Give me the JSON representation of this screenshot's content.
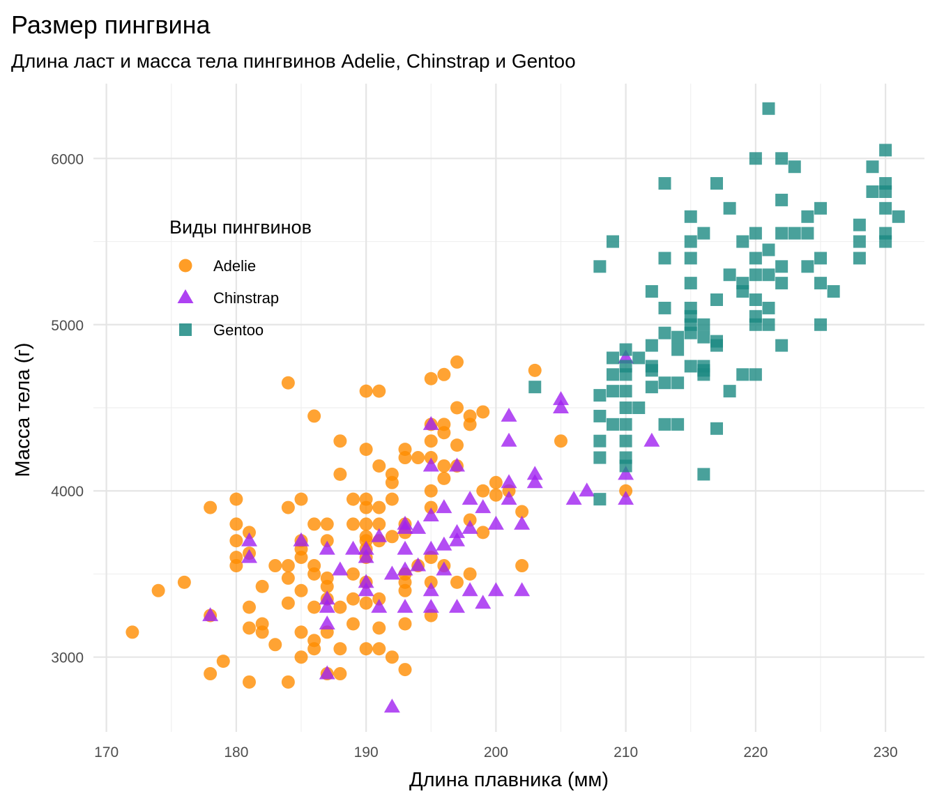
{
  "chart_data": {
    "type": "scatter",
    "title": "Размер пингвина",
    "subtitle": "Длина ласт и масса тела пингвинов Adelie, Chinstrap и Gentoo",
    "xlabel": "Длина плавника (мм)",
    "ylabel": "Масса тела (г)",
    "xlim": [
      169,
      233
    ],
    "ylim": [
      2550,
      6450
    ],
    "xticks": [
      170,
      180,
      190,
      200,
      210,
      220,
      230
    ],
    "yticks": [
      3000,
      4000,
      5000,
      6000
    ],
    "grid": true,
    "legend": {
      "title": "Виды пингвинов",
      "placement": "inside-top-left"
    },
    "series": [
      {
        "name": "Adelie",
        "color": "#FF8C00",
        "shape": "circle",
        "points": [
          [
            172,
            3150
          ],
          [
            174,
            3400
          ],
          [
            176,
            3450
          ],
          [
            178,
            3900
          ],
          [
            178,
            2900
          ],
          [
            178,
            3250
          ],
          [
            179,
            2975
          ],
          [
            180,
            3950
          ],
          [
            180,
            3800
          ],
          [
            180,
            3700
          ],
          [
            180,
            3600
          ],
          [
            180,
            3550
          ],
          [
            181,
            3750
          ],
          [
            181,
            3625
          ],
          [
            181,
            3300
          ],
          [
            181,
            3175
          ],
          [
            181,
            2850
          ],
          [
            182,
            3425
          ],
          [
            182,
            3200
          ],
          [
            182,
            3150
          ],
          [
            183,
            3550
          ],
          [
            183,
            3075
          ],
          [
            184,
            4650
          ],
          [
            184,
            3900
          ],
          [
            184,
            3550
          ],
          [
            184,
            3475
          ],
          [
            184,
            3325
          ],
          [
            184,
            2850
          ],
          [
            185,
            3950
          ],
          [
            185,
            3700
          ],
          [
            185,
            3650
          ],
          [
            185,
            3600
          ],
          [
            185,
            3400
          ],
          [
            185,
            3150
          ],
          [
            185,
            3000
          ],
          [
            186,
            4450
          ],
          [
            186,
            3800
          ],
          [
            186,
            3550
          ],
          [
            186,
            3500
          ],
          [
            186,
            3300
          ],
          [
            186,
            3100
          ],
          [
            186,
            3050
          ],
          [
            187,
            3800
          ],
          [
            187,
            3700
          ],
          [
            187,
            3475
          ],
          [
            187,
            3425
          ],
          [
            187,
            3350
          ],
          [
            187,
            3150
          ],
          [
            187,
            2900
          ],
          [
            188,
            4300
          ],
          [
            188,
            4100
          ],
          [
            188,
            3300
          ],
          [
            188,
            3050
          ],
          [
            188,
            2900
          ],
          [
            189,
            3950
          ],
          [
            189,
            3800
          ],
          [
            189,
            3500
          ],
          [
            189,
            3350
          ],
          [
            189,
            3200
          ],
          [
            190,
            4600
          ],
          [
            190,
            4250
          ],
          [
            190,
            3950
          ],
          [
            190,
            3900
          ],
          [
            190,
            3800
          ],
          [
            190,
            3725
          ],
          [
            190,
            3700
          ],
          [
            190,
            3650
          ],
          [
            190,
            3600
          ],
          [
            190,
            3450
          ],
          [
            190,
            3325
          ],
          [
            190,
            3050
          ],
          [
            191,
            4600
          ],
          [
            191,
            4150
          ],
          [
            191,
            3900
          ],
          [
            191,
            3800
          ],
          [
            191,
            3700
          ],
          [
            191,
            3350
          ],
          [
            191,
            3175
          ],
          [
            191,
            3050
          ],
          [
            192,
            4100
          ],
          [
            192,
            4050
          ],
          [
            192,
            3950
          ],
          [
            192,
            3725
          ],
          [
            192,
            3000
          ],
          [
            193,
            4250
          ],
          [
            193,
            4200
          ],
          [
            193,
            3800
          ],
          [
            193,
            3750
          ],
          [
            193,
            3500
          ],
          [
            193,
            3450
          ],
          [
            193,
            3400
          ],
          [
            193,
            3200
          ],
          [
            193,
            2925
          ],
          [
            194,
            4200
          ],
          [
            194,
            3550
          ],
          [
            195,
            4675
          ],
          [
            195,
            4400
          ],
          [
            195,
            4300
          ],
          [
            195,
            4200
          ],
          [
            195,
            4000
          ],
          [
            195,
            3900
          ],
          [
            195,
            3600
          ],
          [
            195,
            3450
          ],
          [
            195,
            3250
          ],
          [
            196,
            4700
          ],
          [
            196,
            4400
          ],
          [
            196,
            4350
          ],
          [
            196,
            4150
          ],
          [
            196,
            4075
          ],
          [
            196,
            3550
          ],
          [
            197,
            4775
          ],
          [
            197,
            4500
          ],
          [
            197,
            4275
          ],
          [
            197,
            4150
          ],
          [
            197,
            3450
          ],
          [
            198,
            4450
          ],
          [
            198,
            4400
          ],
          [
            198,
            3825
          ],
          [
            198,
            3500
          ],
          [
            199,
            4475
          ],
          [
            199,
            4000
          ],
          [
            199,
            3750
          ],
          [
            200,
            4050
          ],
          [
            200,
            3975
          ],
          [
            201,
            4000
          ],
          [
            202,
            3875
          ],
          [
            202,
            3550
          ],
          [
            203,
            4725
          ],
          [
            205,
            4300
          ],
          [
            210,
            4000
          ]
        ]
      },
      {
        "name": "Chinstrap",
        "color": "#A020F0",
        "shape": "triangle",
        "points": [
          [
            178,
            3250
          ],
          [
            181,
            3700
          ],
          [
            181,
            3600
          ],
          [
            185,
            3700
          ],
          [
            187,
            3650
          ],
          [
            187,
            3350
          ],
          [
            187,
            3300
          ],
          [
            187,
            3200
          ],
          [
            187,
            2900
          ],
          [
            188,
            3525
          ],
          [
            189,
            3650
          ],
          [
            190,
            3650
          ],
          [
            190,
            3600
          ],
          [
            190,
            3450
          ],
          [
            190,
            3400
          ],
          [
            191,
            3725
          ],
          [
            191,
            3300
          ],
          [
            192,
            3500
          ],
          [
            192,
            2700
          ],
          [
            193,
            3800
          ],
          [
            193,
            3775
          ],
          [
            193,
            3650
          ],
          [
            193,
            3525
          ],
          [
            193,
            3300
          ],
          [
            194,
            3775
          ],
          [
            194,
            3550
          ],
          [
            195,
            4400
          ],
          [
            195,
            4150
          ],
          [
            195,
            3850
          ],
          [
            195,
            3650
          ],
          [
            195,
            3400
          ],
          [
            195,
            3300
          ],
          [
            196,
            3900
          ],
          [
            196,
            3675
          ],
          [
            196,
            3525
          ],
          [
            197,
            4150
          ],
          [
            197,
            3750
          ],
          [
            197,
            3700
          ],
          [
            197,
            3300
          ],
          [
            198,
            3950
          ],
          [
            198,
            3775
          ],
          [
            198,
            3400
          ],
          [
            199,
            3900
          ],
          [
            199,
            3325
          ],
          [
            200,
            3800
          ],
          [
            200,
            3400
          ],
          [
            201,
            4450
          ],
          [
            201,
            4300
          ],
          [
            201,
            4050
          ],
          [
            201,
            3950
          ],
          [
            202,
            3800
          ],
          [
            202,
            3400
          ],
          [
            203,
            4100
          ],
          [
            203,
            4050
          ],
          [
            205,
            4550
          ],
          [
            205,
            4500
          ],
          [
            206,
            3950
          ],
          [
            207,
            4000
          ],
          [
            210,
            4800
          ],
          [
            210,
            4100
          ],
          [
            210,
            3950
          ],
          [
            212,
            4300
          ]
        ]
      },
      {
        "name": "Gentoo",
        "color": "#1B8A82",
        "shape": "square",
        "points": [
          [
            203,
            4625
          ],
          [
            208,
            5350
          ],
          [
            208,
            4575
          ],
          [
            208,
            4450
          ],
          [
            208,
            4300
          ],
          [
            208,
            4200
          ],
          [
            208,
            3950
          ],
          [
            209,
            5500
          ],
          [
            209,
            4800
          ],
          [
            209,
            4700
          ],
          [
            209,
            4600
          ],
          [
            209,
            4400
          ],
          [
            210,
            4850
          ],
          [
            210,
            4750
          ],
          [
            210,
            4700
          ],
          [
            210,
            4600
          ],
          [
            210,
            4500
          ],
          [
            210,
            4400
          ],
          [
            210,
            4300
          ],
          [
            210,
            4200
          ],
          [
            210,
            4150
          ],
          [
            211,
            4800
          ],
          [
            211,
            4500
          ],
          [
            212,
            5200
          ],
          [
            212,
            4875
          ],
          [
            212,
            4750
          ],
          [
            212,
            4725
          ],
          [
            212,
            4625
          ],
          [
            213,
            5850
          ],
          [
            213,
            5400
          ],
          [
            213,
            5100
          ],
          [
            213,
            4950
          ],
          [
            213,
            4650
          ],
          [
            213,
            4400
          ],
          [
            214,
            4925
          ],
          [
            214,
            4850
          ],
          [
            214,
            4650
          ],
          [
            214,
            4400
          ],
          [
            215,
            5650
          ],
          [
            215,
            5500
          ],
          [
            215,
            5400
          ],
          [
            215,
            5250
          ],
          [
            215,
            5100
          ],
          [
            215,
            5050
          ],
          [
            215,
            5000
          ],
          [
            215,
            4950
          ],
          [
            215,
            4750
          ],
          [
            216,
            5550
          ],
          [
            216,
            5000
          ],
          [
            216,
            4925
          ],
          [
            216,
            4750
          ],
          [
            216,
            4725
          ],
          [
            216,
            4700
          ],
          [
            216,
            4100
          ],
          [
            217,
            5850
          ],
          [
            217,
            5150
          ],
          [
            217,
            4900
          ],
          [
            217,
            4875
          ],
          [
            217,
            4375
          ],
          [
            218,
            5700
          ],
          [
            218,
            5300
          ],
          [
            218,
            4600
          ],
          [
            219,
            5500
          ],
          [
            219,
            5250
          ],
          [
            219,
            5200
          ],
          [
            219,
            4700
          ],
          [
            220,
            6000
          ],
          [
            220,
            5550
          ],
          [
            220,
            5400
          ],
          [
            220,
            5300
          ],
          [
            220,
            5150
          ],
          [
            220,
            5050
          ],
          [
            220,
            5000
          ],
          [
            220,
            4700
          ],
          [
            221,
            6300
          ],
          [
            221,
            5450
          ],
          [
            221,
            5300
          ],
          [
            221,
            5100
          ],
          [
            221,
            5000
          ],
          [
            222,
            6000
          ],
          [
            222,
            5750
          ],
          [
            222,
            5550
          ],
          [
            222,
            5350
          ],
          [
            222,
            5250
          ],
          [
            222,
            4875
          ],
          [
            223,
            5950
          ],
          [
            223,
            5550
          ],
          [
            224,
            5650
          ],
          [
            224,
            5550
          ],
          [
            224,
            5350
          ],
          [
            225,
            5700
          ],
          [
            225,
            5400
          ],
          [
            225,
            5250
          ],
          [
            225,
            5000
          ],
          [
            226,
            5200
          ],
          [
            228,
            5600
          ],
          [
            228,
            5500
          ],
          [
            228,
            5400
          ],
          [
            229,
            5950
          ],
          [
            229,
            5800
          ],
          [
            230,
            6050
          ],
          [
            230,
            5850
          ],
          [
            230,
            5800
          ],
          [
            230,
            5700
          ],
          [
            230,
            5550
          ],
          [
            230,
            5500
          ],
          [
            231,
            5650
          ]
        ]
      }
    ]
  }
}
